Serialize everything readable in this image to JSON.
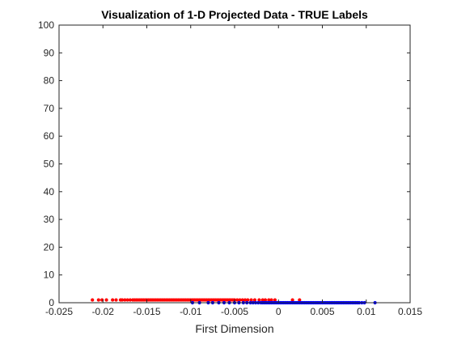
{
  "chart_data": {
    "type": "scatter",
    "title": "Visualization of 1-D Projected Data - TRUE Labels",
    "xlabel": "First Dimension",
    "ylabel": "",
    "xlim": [
      -0.025,
      0.015
    ],
    "ylim": [
      0,
      100
    ],
    "xticks": [
      -0.025,
      -0.02,
      -0.015,
      -0.01,
      -0.005,
      0,
      0.005,
      0.01,
      0.015
    ],
    "xtick_labels": [
      "-0.025",
      "-0.02",
      "-0.015",
      "-0.01",
      "-0.005",
      "0",
      "0.005",
      "0.01",
      "0.015"
    ],
    "yticks": [
      0,
      10,
      20,
      30,
      40,
      50,
      60,
      70,
      80,
      90,
      100
    ],
    "ytick_labels": [
      "0",
      "10",
      "20",
      "30",
      "40",
      "50",
      "60",
      "70",
      "80",
      "90",
      "100"
    ],
    "grid": false,
    "legend": "none",
    "series": [
      {
        "color": "#ff0000",
        "y": 1,
        "x": [
          -0.0212,
          -0.0205,
          -0.0201,
          -0.0196,
          -0.0189,
          -0.0185,
          -0.018,
          -0.0178,
          -0.0175,
          -0.0172,
          -0.0169,
          -0.0166,
          -0.0164,
          -0.0162,
          -0.016,
          -0.0158,
          -0.0156,
          -0.0154,
          -0.0152,
          -0.015,
          -0.0148,
          -0.0146,
          -0.0144,
          -0.0142,
          -0.014,
          -0.0138,
          -0.0136,
          -0.0134,
          -0.0132,
          -0.013,
          -0.0128,
          -0.0126,
          -0.0124,
          -0.0122,
          -0.012,
          -0.0118,
          -0.0116,
          -0.0114,
          -0.0112,
          -0.011,
          -0.0108,
          -0.0106,
          -0.0104,
          -0.0102,
          -0.01,
          -0.0098,
          -0.0096,
          -0.0094,
          -0.0092,
          -0.009,
          -0.0088,
          -0.0086,
          -0.0084,
          -0.0082,
          -0.008,
          -0.0078,
          -0.0076,
          -0.0074,
          -0.0072,
          -0.007,
          -0.0068,
          -0.0066,
          -0.0064,
          -0.0062,
          -0.006,
          -0.0058,
          -0.0056,
          -0.0054,
          -0.0052,
          -0.005,
          -0.0047,
          -0.0044,
          -0.0041,
          -0.0038,
          -0.0035,
          -0.0031,
          -0.0027,
          -0.0022,
          -0.0018,
          -0.0015,
          -0.0011,
          -0.0008,
          -0.0004,
          0.0016,
          0.0024
        ]
      },
      {
        "color": "#0000ff",
        "y": 0,
        "x": [
          -0.0098,
          -0.009,
          -0.008,
          -0.0075,
          -0.0068,
          -0.0062,
          -0.0056,
          -0.005,
          -0.0045,
          -0.004,
          -0.0036,
          -0.0032,
          -0.0029,
          -0.0026,
          -0.0023,
          -0.002,
          -0.0018,
          -0.0016,
          -0.0014,
          -0.0012,
          -0.001,
          -0.0008,
          -0.0006,
          -0.0004,
          -0.0002,
          0.0,
          0.0002,
          0.0004,
          0.0006,
          0.0008,
          0.001,
          0.0012,
          0.0014,
          0.0016,
          0.0018,
          0.002,
          0.0022,
          0.0024,
          0.0026,
          0.0028,
          0.003,
          0.0032,
          0.0034,
          0.0036,
          0.0038,
          0.004,
          0.0042,
          0.0044,
          0.0046,
          0.0048,
          0.005,
          0.0052,
          0.0054,
          0.0056,
          0.0058,
          0.006,
          0.0062,
          0.0064,
          0.0066,
          0.0068,
          0.007,
          0.0072,
          0.0074,
          0.0076,
          0.0078,
          0.008,
          0.0082,
          0.0084,
          0.0086,
          0.0088,
          0.009,
          0.0092,
          0.0095,
          0.0098,
          0.011
        ]
      }
    ]
  }
}
